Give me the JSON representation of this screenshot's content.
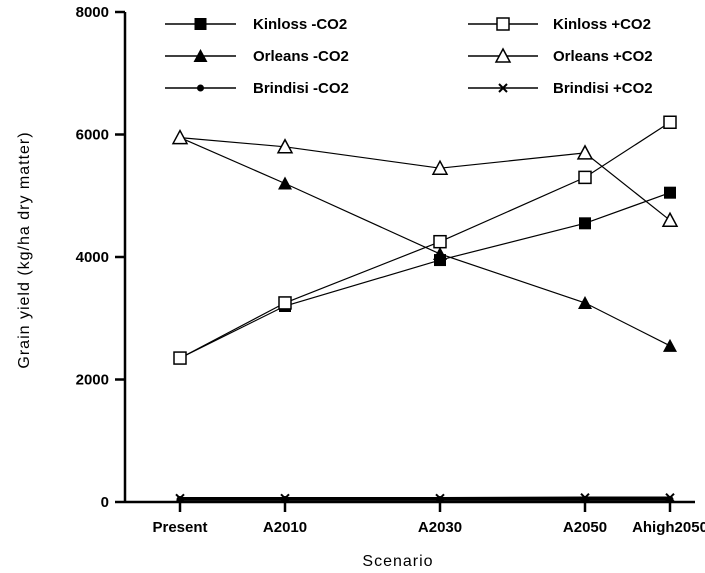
{
  "chart_data": {
    "type": "line",
    "xlabel": "Scenario",
    "ylabel": "Grain yield (kg/ha dry matter)",
    "categories": [
      "Present",
      "A2010",
      "A2030",
      "A2050",
      "Ahigh2050"
    ],
    "ylim": [
      0,
      8000
    ],
    "yticks": [
      "0",
      "2000",
      "4000",
      "6000",
      "8000"
    ],
    "grid": false,
    "legend_position": "top",
    "series": [
      {
        "name": "Kinloss -CO2",
        "marker": "filled-square",
        "values": [
          2350,
          3200,
          3950,
          4550,
          5050
        ]
      },
      {
        "name": "Kinloss +CO2",
        "marker": "open-square",
        "values": [
          2350,
          3250,
          4250,
          5300,
          6200
        ]
      },
      {
        "name": "Orleans -CO2",
        "marker": "filled-triangle",
        "values": [
          5950,
          5200,
          4050,
          3250,
          2550
        ]
      },
      {
        "name": "Orleans +CO2",
        "marker": "open-triangle",
        "values": [
          5950,
          5800,
          5450,
          5700,
          4600
        ]
      },
      {
        "name": "Brindisi -CO2",
        "marker": "filled-circle",
        "values": [
          40,
          40,
          40,
          40,
          40
        ]
      },
      {
        "name": "Brindisi +CO2",
        "marker": "cross",
        "values": [
          60,
          60,
          60,
          70,
          70
        ]
      }
    ]
  }
}
